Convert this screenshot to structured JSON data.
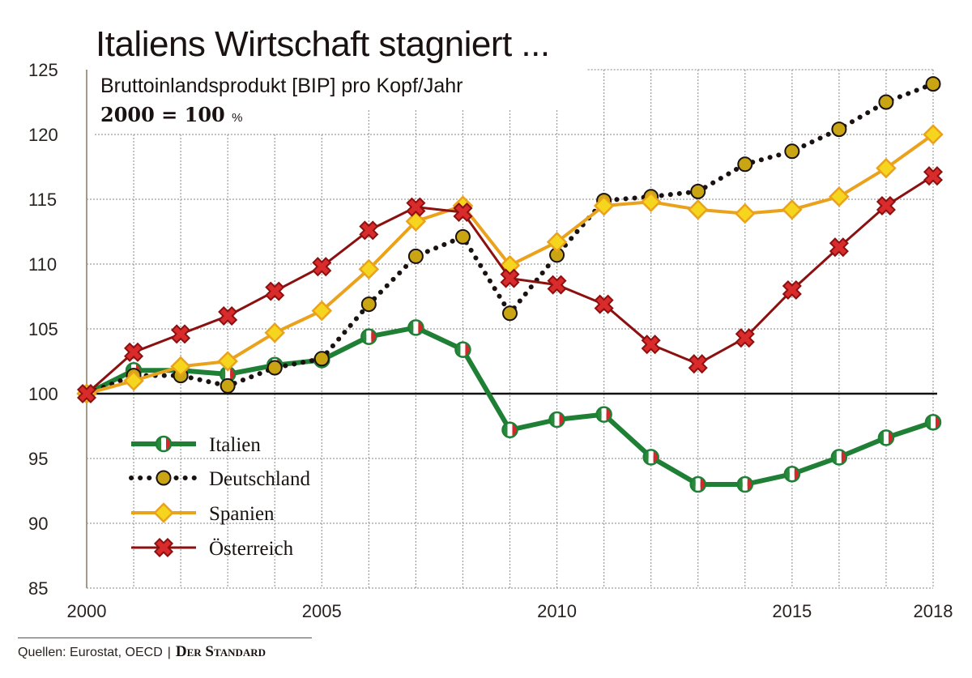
{
  "chart_data": {
    "type": "line",
    "title": "Italiens Wirtschaft stagniert ...",
    "subtitle": "Bruttoinlandsprodukt [BIP] pro Kopf/Jahr",
    "basis": "2000 = 100",
    "basis_unit": "%",
    "xlabel": "",
    "ylabel": "",
    "x": [
      2000,
      2001,
      2002,
      2003,
      2004,
      2005,
      2006,
      2007,
      2008,
      2009,
      2010,
      2011,
      2012,
      2013,
      2014,
      2015,
      2016,
      2017,
      2018
    ],
    "xlim": [
      2000,
      2018
    ],
    "ylim": [
      85,
      125
    ],
    "x_ticks": [
      "2000",
      "2005",
      "2010",
      "2015",
      "2018"
    ],
    "y_ticks": [
      "85",
      "90",
      "95",
      "100",
      "105",
      "110",
      "115",
      "120",
      "125"
    ],
    "grid": true,
    "reference_line": 100,
    "legend_position": "bottom-left",
    "series": [
      {
        "name": "Italien",
        "color": "#1e7f35",
        "marker": "italian-flag-circle",
        "style": "solid",
        "values": [
          100,
          101.8,
          101.8,
          101.5,
          102.2,
          102.6,
          104.4,
          105.1,
          103.4,
          97.2,
          98.0,
          98.4,
          95.1,
          93.0,
          93.0,
          93.8,
          95.1,
          96.6,
          97.8
        ]
      },
      {
        "name": "Deutschland",
        "color": "#1a1210",
        "marker_color": "#c9a514",
        "marker": "circle",
        "style": "dotted",
        "values": [
          100,
          101.4,
          101.4,
          100.6,
          102.0,
          102.7,
          106.9,
          110.6,
          112.1,
          106.2,
          110.7,
          114.9,
          115.2,
          115.6,
          117.7,
          118.7,
          120.4,
          122.5,
          123.9
        ]
      },
      {
        "name": "Spanien",
        "color": "#eaa21c",
        "marker_color": "#f6d51e",
        "marker": "diamond",
        "style": "solid",
        "values": [
          100,
          101.0,
          102.1,
          102.5,
          104.7,
          106.4,
          109.6,
          113.3,
          114.5,
          109.9,
          111.7,
          114.5,
          114.8,
          114.2,
          113.9,
          114.2,
          115.2,
          117.4,
          120.0
        ]
      },
      {
        "name": "Österreich",
        "color": "#8b1010",
        "marker_color": "#d92b2b",
        "marker": "cross",
        "style": "solid",
        "values": [
          100,
          103.2,
          104.6,
          106.0,
          107.9,
          109.8,
          112.6,
          114.4,
          114.0,
          108.9,
          108.4,
          106.9,
          103.8,
          102.3,
          104.3,
          108.0,
          111.3,
          114.5,
          116.8
        ]
      }
    ]
  },
  "footer": {
    "sources": "Quellen: Eurostat, OECD",
    "separator": "|",
    "brand": "Der Standard"
  }
}
